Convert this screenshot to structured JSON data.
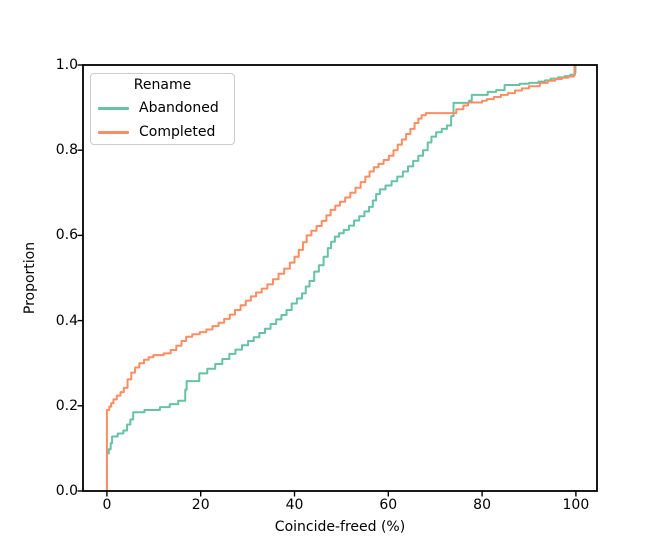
{
  "figure": {
    "background": "#ffffff"
  },
  "chart_data": {
    "type": "line",
    "step": "post",
    "title": "",
    "xlabel": "Coincide-freed (%)",
    "ylabel": "Proportion",
    "xlim": [
      -5.1,
      104.5
    ],
    "ylim": [
      0,
      1
    ],
    "grid": false,
    "xticks": [
      {
        "v": 0,
        "label": "0"
      },
      {
        "v": 20,
        "label": "20"
      },
      {
        "v": 40,
        "label": "40"
      },
      {
        "v": 60,
        "label": "60"
      },
      {
        "v": 80,
        "label": "80"
      },
      {
        "v": 100,
        "label": "100"
      }
    ],
    "yticks": [
      {
        "v": 0.0,
        "label": "0.0"
      },
      {
        "v": 0.2,
        "label": "0.2"
      },
      {
        "v": 0.4,
        "label": "0.4"
      },
      {
        "v": 0.6,
        "label": "0.6"
      },
      {
        "v": 0.8,
        "label": "0.8"
      },
      {
        "v": 1.0,
        "label": "1.0"
      }
    ],
    "legend": {
      "title": "Rename",
      "position": "upper left"
    },
    "series": [
      {
        "name": "Abandoned",
        "color": "#66c2a5",
        "points": [
          [
            0,
            0
          ],
          [
            0,
            0.088
          ],
          [
            0.4,
            0.098
          ],
          [
            0.8,
            0.112
          ],
          [
            1.1,
            0.128
          ],
          [
            2.3,
            0.135
          ],
          [
            3.5,
            0.142
          ],
          [
            4.3,
            0.156
          ],
          [
            5,
            0.168
          ],
          [
            5.6,
            0.185
          ],
          [
            8,
            0.19
          ],
          [
            11.3,
            0.197
          ],
          [
            13.4,
            0.204
          ],
          [
            15.2,
            0.212
          ],
          [
            16.7,
            0.238
          ],
          [
            17,
            0.258
          ],
          [
            19.7,
            0.276
          ],
          [
            21.4,
            0.287
          ],
          [
            23.1,
            0.298
          ],
          [
            24.6,
            0.31
          ],
          [
            26.1,
            0.322
          ],
          [
            27.4,
            0.332
          ],
          [
            28.8,
            0.342
          ],
          [
            30.1,
            0.352
          ],
          [
            31.3,
            0.361
          ],
          [
            32.5,
            0.371
          ],
          [
            33.7,
            0.381
          ],
          [
            34.9,
            0.392
          ],
          [
            36.1,
            0.403
          ],
          [
            37.2,
            0.413
          ],
          [
            38.3,
            0.425
          ],
          [
            39.4,
            0.44
          ],
          [
            40.5,
            0.452
          ],
          [
            41.6,
            0.464
          ],
          [
            42.4,
            0.48
          ],
          [
            43.2,
            0.493
          ],
          [
            44.2,
            0.515
          ],
          [
            45.2,
            0.53
          ],
          [
            46.2,
            0.55
          ],
          [
            47.1,
            0.57
          ],
          [
            47.8,
            0.585
          ],
          [
            48.6,
            0.597
          ],
          [
            49.5,
            0.605
          ],
          [
            50.5,
            0.613
          ],
          [
            51.6,
            0.623
          ],
          [
            52.7,
            0.635
          ],
          [
            53.8,
            0.645
          ],
          [
            54.9,
            0.656
          ],
          [
            55.9,
            0.667
          ],
          [
            56.7,
            0.682
          ],
          [
            57.4,
            0.697
          ],
          [
            58.2,
            0.708
          ],
          [
            59.4,
            0.717
          ],
          [
            60.7,
            0.727
          ],
          [
            61.9,
            0.738
          ],
          [
            63.1,
            0.75
          ],
          [
            64.2,
            0.762
          ],
          [
            65.3,
            0.775
          ],
          [
            66.4,
            0.787
          ],
          [
            67.4,
            0.8
          ],
          [
            68.4,
            0.818
          ],
          [
            69.2,
            0.832
          ],
          [
            70.2,
            0.842
          ],
          [
            71.4,
            0.85
          ],
          [
            72.5,
            0.858
          ],
          [
            73.4,
            0.88
          ],
          [
            73.9,
            0.911
          ],
          [
            77.2,
            0.916
          ],
          [
            77.8,
            0.93
          ],
          [
            81.2,
            0.937
          ],
          [
            83,
            0.941
          ],
          [
            84.8,
            0.953
          ],
          [
            88,
            0.956
          ],
          [
            90,
            0.958
          ],
          [
            92,
            0.961
          ],
          [
            93.4,
            0.964
          ],
          [
            94.6,
            0.968
          ],
          [
            96.2,
            0.971
          ],
          [
            97.6,
            0.974
          ],
          [
            98.8,
            0.977
          ],
          [
            99.8,
            0.982
          ],
          [
            99.9,
            1
          ],
          [
            100,
            1
          ]
        ]
      },
      {
        "name": "Completed",
        "color": "#fc8d62",
        "points": [
          [
            0,
            0
          ],
          [
            0,
            0.19
          ],
          [
            0.5,
            0.198
          ],
          [
            0.9,
            0.206
          ],
          [
            1.4,
            0.215
          ],
          [
            2.1,
            0.224
          ],
          [
            2.9,
            0.232
          ],
          [
            3.6,
            0.242
          ],
          [
            4.4,
            0.262
          ],
          [
            5.2,
            0.278
          ],
          [
            6,
            0.29
          ],
          [
            6.9,
            0.3
          ],
          [
            7.9,
            0.308
          ],
          [
            8.9,
            0.314
          ],
          [
            9.9,
            0.319
          ],
          [
            12.1,
            0.323
          ],
          [
            13.6,
            0.331
          ],
          [
            14.8,
            0.341
          ],
          [
            15.9,
            0.352
          ],
          [
            16.9,
            0.362
          ],
          [
            18.2,
            0.368
          ],
          [
            19.8,
            0.373
          ],
          [
            21.2,
            0.379
          ],
          [
            22.5,
            0.387
          ],
          [
            23.8,
            0.395
          ],
          [
            25,
            0.404
          ],
          [
            26.2,
            0.414
          ],
          [
            27.3,
            0.425
          ],
          [
            28.5,
            0.436
          ],
          [
            29.6,
            0.447
          ],
          [
            30.7,
            0.457
          ],
          [
            31.8,
            0.466
          ],
          [
            33,
            0.475
          ],
          [
            34.2,
            0.485
          ],
          [
            35.4,
            0.497
          ],
          [
            36.6,
            0.51
          ],
          [
            37.8,
            0.522
          ],
          [
            39,
            0.536
          ],
          [
            40,
            0.55
          ],
          [
            40.9,
            0.566
          ],
          [
            41.8,
            0.584
          ],
          [
            42.6,
            0.6
          ],
          [
            43.6,
            0.611
          ],
          [
            44.7,
            0.622
          ],
          [
            45.8,
            0.634
          ],
          [
            46.8,
            0.647
          ],
          [
            47.7,
            0.66
          ],
          [
            48.7,
            0.67
          ],
          [
            49.7,
            0.679
          ],
          [
            50.8,
            0.689
          ],
          [
            51.9,
            0.7
          ],
          [
            53,
            0.712
          ],
          [
            54.1,
            0.725
          ],
          [
            55.1,
            0.738
          ],
          [
            56,
            0.75
          ],
          [
            56.9,
            0.76
          ],
          [
            57.9,
            0.768
          ],
          [
            59,
            0.777
          ],
          [
            60.1,
            0.787
          ],
          [
            61.1,
            0.8
          ],
          [
            62,
            0.813
          ],
          [
            62.9,
            0.825
          ],
          [
            63.8,
            0.838
          ],
          [
            64.7,
            0.85
          ],
          [
            65.6,
            0.864
          ],
          [
            66.4,
            0.874
          ],
          [
            67.1,
            0.882
          ],
          [
            68,
            0.887
          ],
          [
            74.5,
            0.896
          ],
          [
            76,
            0.905
          ],
          [
            77,
            0.912
          ],
          [
            80,
            0.916
          ],
          [
            81,
            0.92
          ],
          [
            82.5,
            0.925
          ],
          [
            84,
            0.93
          ],
          [
            85.5,
            0.934
          ],
          [
            87,
            0.94
          ],
          [
            88.5,
            0.945
          ],
          [
            90,
            0.95
          ],
          [
            92.3,
            0.958
          ],
          [
            94,
            0.963
          ],
          [
            95.6,
            0.967
          ],
          [
            97,
            0.97
          ],
          [
            98.4,
            0.973
          ],
          [
            99.6,
            0.977
          ],
          [
            99.7,
            1
          ],
          [
            100,
            1
          ]
        ]
      }
    ]
  }
}
